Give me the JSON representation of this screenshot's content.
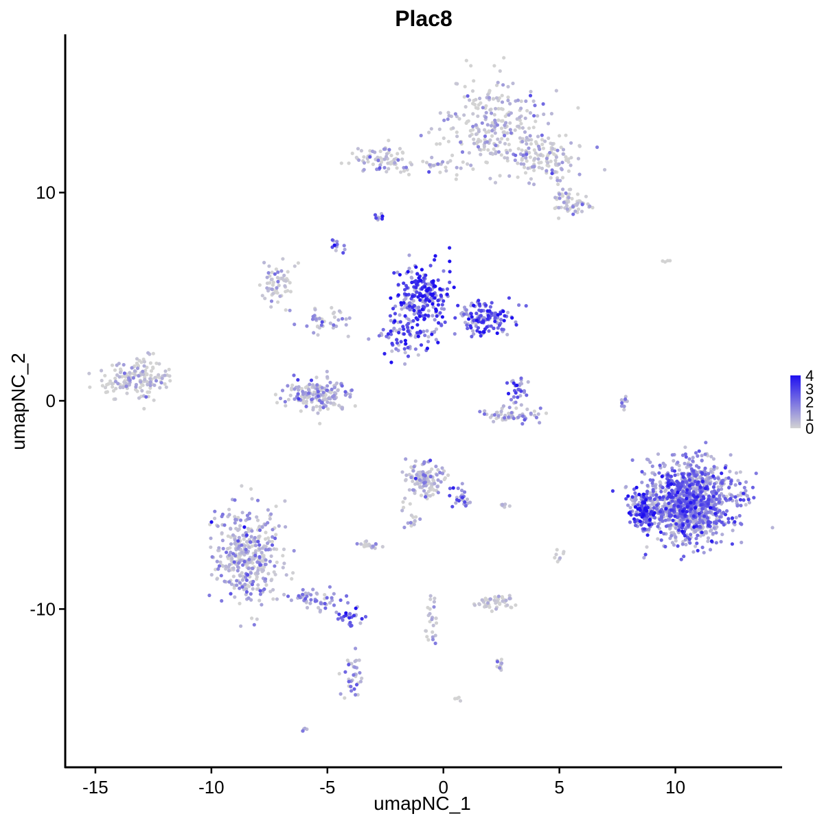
{
  "chart_data": {
    "type": "scatter",
    "title": "Plac8",
    "xlabel": "umapNC_1",
    "ylabel": "umapNC_2",
    "xlim": [
      -16.3,
      14.6
    ],
    "ylim": [
      -17.6,
      17.6
    ],
    "xticks": [
      -15,
      -10,
      -5,
      0,
      5,
      10
    ],
    "xtick_labels": [
      "-15",
      "-10",
      "-5",
      "0",
      "5",
      "10"
    ],
    "yticks": [
      -10,
      0,
      10
    ],
    "ytick_labels": [
      "-10",
      "0",
      "10"
    ],
    "grid": false,
    "legend": {
      "position": "right",
      "type": "colorbar",
      "ticks": [
        0,
        1,
        2,
        3,
        4
      ],
      "tick_labels": [
        "0",
        "1",
        "2",
        "3",
        "4"
      ],
      "low_color": "#d3d3d3",
      "high_color": "#1f10f0"
    },
    "clusters": [
      {
        "cx": 2.2,
        "cy": 13.2,
        "sx": 1.4,
        "sy": 1.4,
        "n": 260,
        "expr": 0.5
      },
      {
        "cx": 4.6,
        "cy": 11.6,
        "sx": 1.0,
        "sy": 0.7,
        "n": 120,
        "expr": 0.3
      },
      {
        "cx": 5.6,
        "cy": 9.5,
        "sx": 0.6,
        "sy": 0.5,
        "n": 60,
        "expr": 0.2
      },
      {
        "cx": -2.6,
        "cy": 11.6,
        "sx": 0.8,
        "sy": 0.4,
        "n": 70,
        "expr": 0.3
      },
      {
        "cx": -0.3,
        "cy": 11.3,
        "sx": 1.1,
        "sy": 0.3,
        "n": 30,
        "expr": 0.5
      },
      {
        "cx": -2.8,
        "cy": 8.8,
        "sx": 0.15,
        "sy": 0.15,
        "n": 10,
        "expr": 2.0
      },
      {
        "cx": -4.6,
        "cy": 7.4,
        "sx": 0.15,
        "sy": 0.25,
        "n": 14,
        "expr": 2.5
      },
      {
        "cx": -7.2,
        "cy": 5.6,
        "sx": 0.5,
        "sy": 0.6,
        "n": 60,
        "expr": 0.2
      },
      {
        "cx": -5.2,
        "cy": 3.8,
        "sx": 0.8,
        "sy": 0.4,
        "n": 40,
        "expr": 1.0
      },
      {
        "cx": -0.9,
        "cy": 4.9,
        "sx": 0.75,
        "sy": 1.0,
        "n": 260,
        "expr": 3.3
      },
      {
        "cx": 1.8,
        "cy": 4.0,
        "sx": 0.7,
        "sy": 0.5,
        "n": 140,
        "expr": 2.5
      },
      {
        "cx": -1.6,
        "cy": 3.0,
        "sx": 1.0,
        "sy": 0.6,
        "n": 60,
        "expr": 2.2
      },
      {
        "cx": -13.3,
        "cy": 1.1,
        "sx": 0.8,
        "sy": 0.55,
        "n": 160,
        "expr": 0.15
      },
      {
        "cx": -5.5,
        "cy": 0.3,
        "sx": 0.9,
        "sy": 0.45,
        "n": 170,
        "expr": 0.6
      },
      {
        "cx": 3.2,
        "cy": 0.6,
        "sx": 0.25,
        "sy": 0.4,
        "n": 30,
        "expr": 2.5
      },
      {
        "cx": 3.0,
        "cy": -0.7,
        "sx": 0.8,
        "sy": 0.3,
        "n": 60,
        "expr": 1.0
      },
      {
        "cx": 10.6,
        "cy": -4.8,
        "sx": 1.2,
        "sy": 1.2,
        "n": 1100,
        "expr": 2.0
      },
      {
        "cx": 8.6,
        "cy": -5.3,
        "sx": 0.4,
        "sy": 0.6,
        "n": 110,
        "expr": 3.2
      },
      {
        "cx": -0.8,
        "cy": -3.8,
        "sx": 0.6,
        "sy": 0.5,
        "n": 130,
        "expr": 0.7
      },
      {
        "cx": 0.8,
        "cy": -4.6,
        "sx": 0.3,
        "sy": 0.4,
        "n": 25,
        "expr": 2.2
      },
      {
        "cx": -1.4,
        "cy": -5.8,
        "sx": 0.4,
        "sy": 0.6,
        "n": 15,
        "expr": 0.3
      },
      {
        "cx": -8.5,
        "cy": -7.5,
        "sx": 0.9,
        "sy": 1.4,
        "n": 380,
        "expr": 0.8
      },
      {
        "cx": -5.5,
        "cy": -9.6,
        "sx": 0.8,
        "sy": 0.4,
        "n": 50,
        "expr": 1.4
      },
      {
        "cx": -4.0,
        "cy": -10.4,
        "sx": 0.3,
        "sy": 0.3,
        "n": 25,
        "expr": 2.6
      },
      {
        "cx": -3.9,
        "cy": -13.3,
        "sx": 0.25,
        "sy": 0.8,
        "n": 35,
        "expr": 1.0
      },
      {
        "cx": 2.3,
        "cy": -9.7,
        "sx": 0.6,
        "sy": 0.2,
        "n": 50,
        "expr": 0.1
      },
      {
        "cx": -3.2,
        "cy": -6.9,
        "sx": 0.35,
        "sy": 0.12,
        "n": 20,
        "expr": 0.1
      },
      {
        "cx": -0.5,
        "cy": -10.5,
        "sx": 0.2,
        "sy": 0.7,
        "n": 25,
        "expr": 0.6
      },
      {
        "cx": 2.4,
        "cy": -12.6,
        "sx": 0.2,
        "sy": 0.2,
        "n": 10,
        "expr": 0.3
      },
      {
        "cx": 7.8,
        "cy": -0.1,
        "sx": 0.12,
        "sy": 0.5,
        "n": 10,
        "expr": 1.2
      },
      {
        "cx": 9.5,
        "cy": 6.7,
        "sx": 0.15,
        "sy": 0.05,
        "n": 4,
        "expr": 0.0
      },
      {
        "cx": 5.0,
        "cy": -7.5,
        "sx": 0.1,
        "sy": 0.3,
        "n": 8,
        "expr": 0.4
      },
      {
        "cx": 2.6,
        "cy": -5.0,
        "sx": 0.2,
        "sy": 0.08,
        "n": 6,
        "expr": 0.1
      },
      {
        "cx": -6.0,
        "cy": -15.8,
        "sx": 0.1,
        "sy": 0.08,
        "n": 5,
        "expr": 0.0
      },
      {
        "cx": 0.6,
        "cy": -14.3,
        "sx": 0.1,
        "sy": 0.08,
        "n": 4,
        "expr": 0.0
      }
    ]
  }
}
